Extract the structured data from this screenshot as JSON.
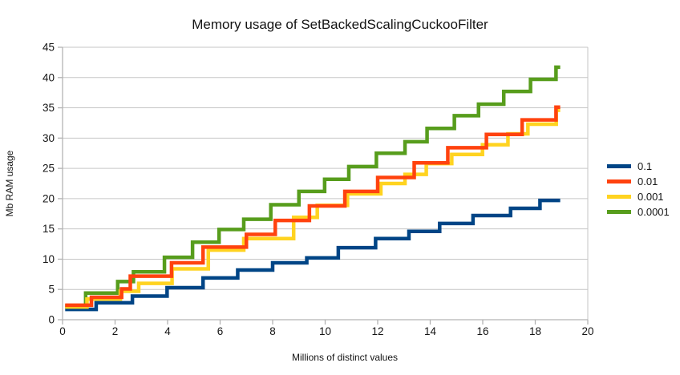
{
  "title": "Memory usage of SetBackedScalingCuckooFilter",
  "chart_data": {
    "type": "line",
    "title": "Memory usage of SetBackedScalingCuckooFilter",
    "xlabel": "Millions of distinct values",
    "ylabel": "Mb RAM usage",
    "xlim": [
      0,
      20
    ],
    "ylim": [
      0,
      45
    ],
    "xticks": [
      0,
      2,
      4,
      6,
      8,
      10,
      12,
      14,
      16,
      18,
      20
    ],
    "yticks": [
      0,
      5,
      10,
      15,
      20,
      25,
      30,
      35,
      40,
      45
    ],
    "grid": "horizontal-only",
    "legend_position": "right-middle",
    "line_style": "staircase (step-after)",
    "x_start": 0.1,
    "x_end": 18.95,
    "series": [
      {
        "name": "0.1",
        "color": "#004586",
        "steps": [
          [
            0.1,
            1.7
          ],
          [
            1.28,
            2.8
          ],
          [
            2.66,
            3.9
          ],
          [
            3.98,
            5.3
          ],
          [
            5.35,
            6.9
          ],
          [
            6.67,
            8.2
          ],
          [
            8.0,
            9.4
          ],
          [
            9.3,
            10.2
          ],
          [
            10.5,
            11.9
          ],
          [
            11.92,
            13.4
          ],
          [
            13.19,
            14.6
          ],
          [
            14.36,
            15.9
          ],
          [
            15.63,
            17.2
          ],
          [
            17.06,
            18.4
          ],
          [
            18.18,
            19.7
          ]
        ]
      },
      {
        "name": "0.01",
        "color": "#ff420e",
        "steps": [
          [
            0.1,
            2.4
          ],
          [
            1.1,
            3.7
          ],
          [
            2.25,
            5.1
          ],
          [
            2.58,
            7.2
          ],
          [
            4.15,
            9.4
          ],
          [
            5.35,
            12.0
          ],
          [
            7.0,
            14.1
          ],
          [
            8.1,
            16.4
          ],
          [
            9.4,
            18.8
          ],
          [
            10.75,
            21.2
          ],
          [
            12.0,
            23.5
          ],
          [
            13.39,
            25.9
          ],
          [
            14.67,
            28.4
          ],
          [
            16.14,
            30.6
          ],
          [
            17.5,
            33.0
          ],
          [
            18.79,
            35.1
          ]
        ]
      },
      {
        "name": "0.001",
        "color": "#ffd320",
        "steps": [
          [
            0.1,
            2.1
          ],
          [
            0.93,
            3.4
          ],
          [
            2.2,
            4.7
          ],
          [
            2.9,
            6.0
          ],
          [
            4.17,
            8.4
          ],
          [
            5.55,
            11.5
          ],
          [
            6.9,
            13.4
          ],
          [
            8.8,
            16.9
          ],
          [
            9.7,
            18.9
          ],
          [
            10.85,
            20.8
          ],
          [
            12.12,
            22.5
          ],
          [
            13.04,
            24.0
          ],
          [
            13.85,
            25.8
          ],
          [
            14.82,
            27.3
          ],
          [
            15.99,
            28.9
          ],
          [
            16.96,
            30.7
          ],
          [
            17.72,
            32.3
          ],
          [
            18.8,
            34.6
          ]
        ]
      },
      {
        "name": "0.0001",
        "color": "#579d1c",
        "steps": [
          [
            0.1,
            2.3
          ],
          [
            0.88,
            4.4
          ],
          [
            2.1,
            6.3
          ],
          [
            2.7,
            7.9
          ],
          [
            3.88,
            10.3
          ],
          [
            4.95,
            12.8
          ],
          [
            5.96,
            14.9
          ],
          [
            6.9,
            16.6
          ],
          [
            7.93,
            19.0
          ],
          [
            9.0,
            21.2
          ],
          [
            9.98,
            23.2
          ],
          [
            10.9,
            25.3
          ],
          [
            11.95,
            27.5
          ],
          [
            13.04,
            29.4
          ],
          [
            13.88,
            31.6
          ],
          [
            14.92,
            33.7
          ],
          [
            15.84,
            35.6
          ],
          [
            16.8,
            37.7
          ],
          [
            17.82,
            39.7
          ],
          [
            18.79,
            41.7
          ]
        ]
      }
    ],
    "colors": {
      "gridline": "#c6c6c6",
      "axis": "#b3b3b3",
      "text": "#141414"
    }
  }
}
